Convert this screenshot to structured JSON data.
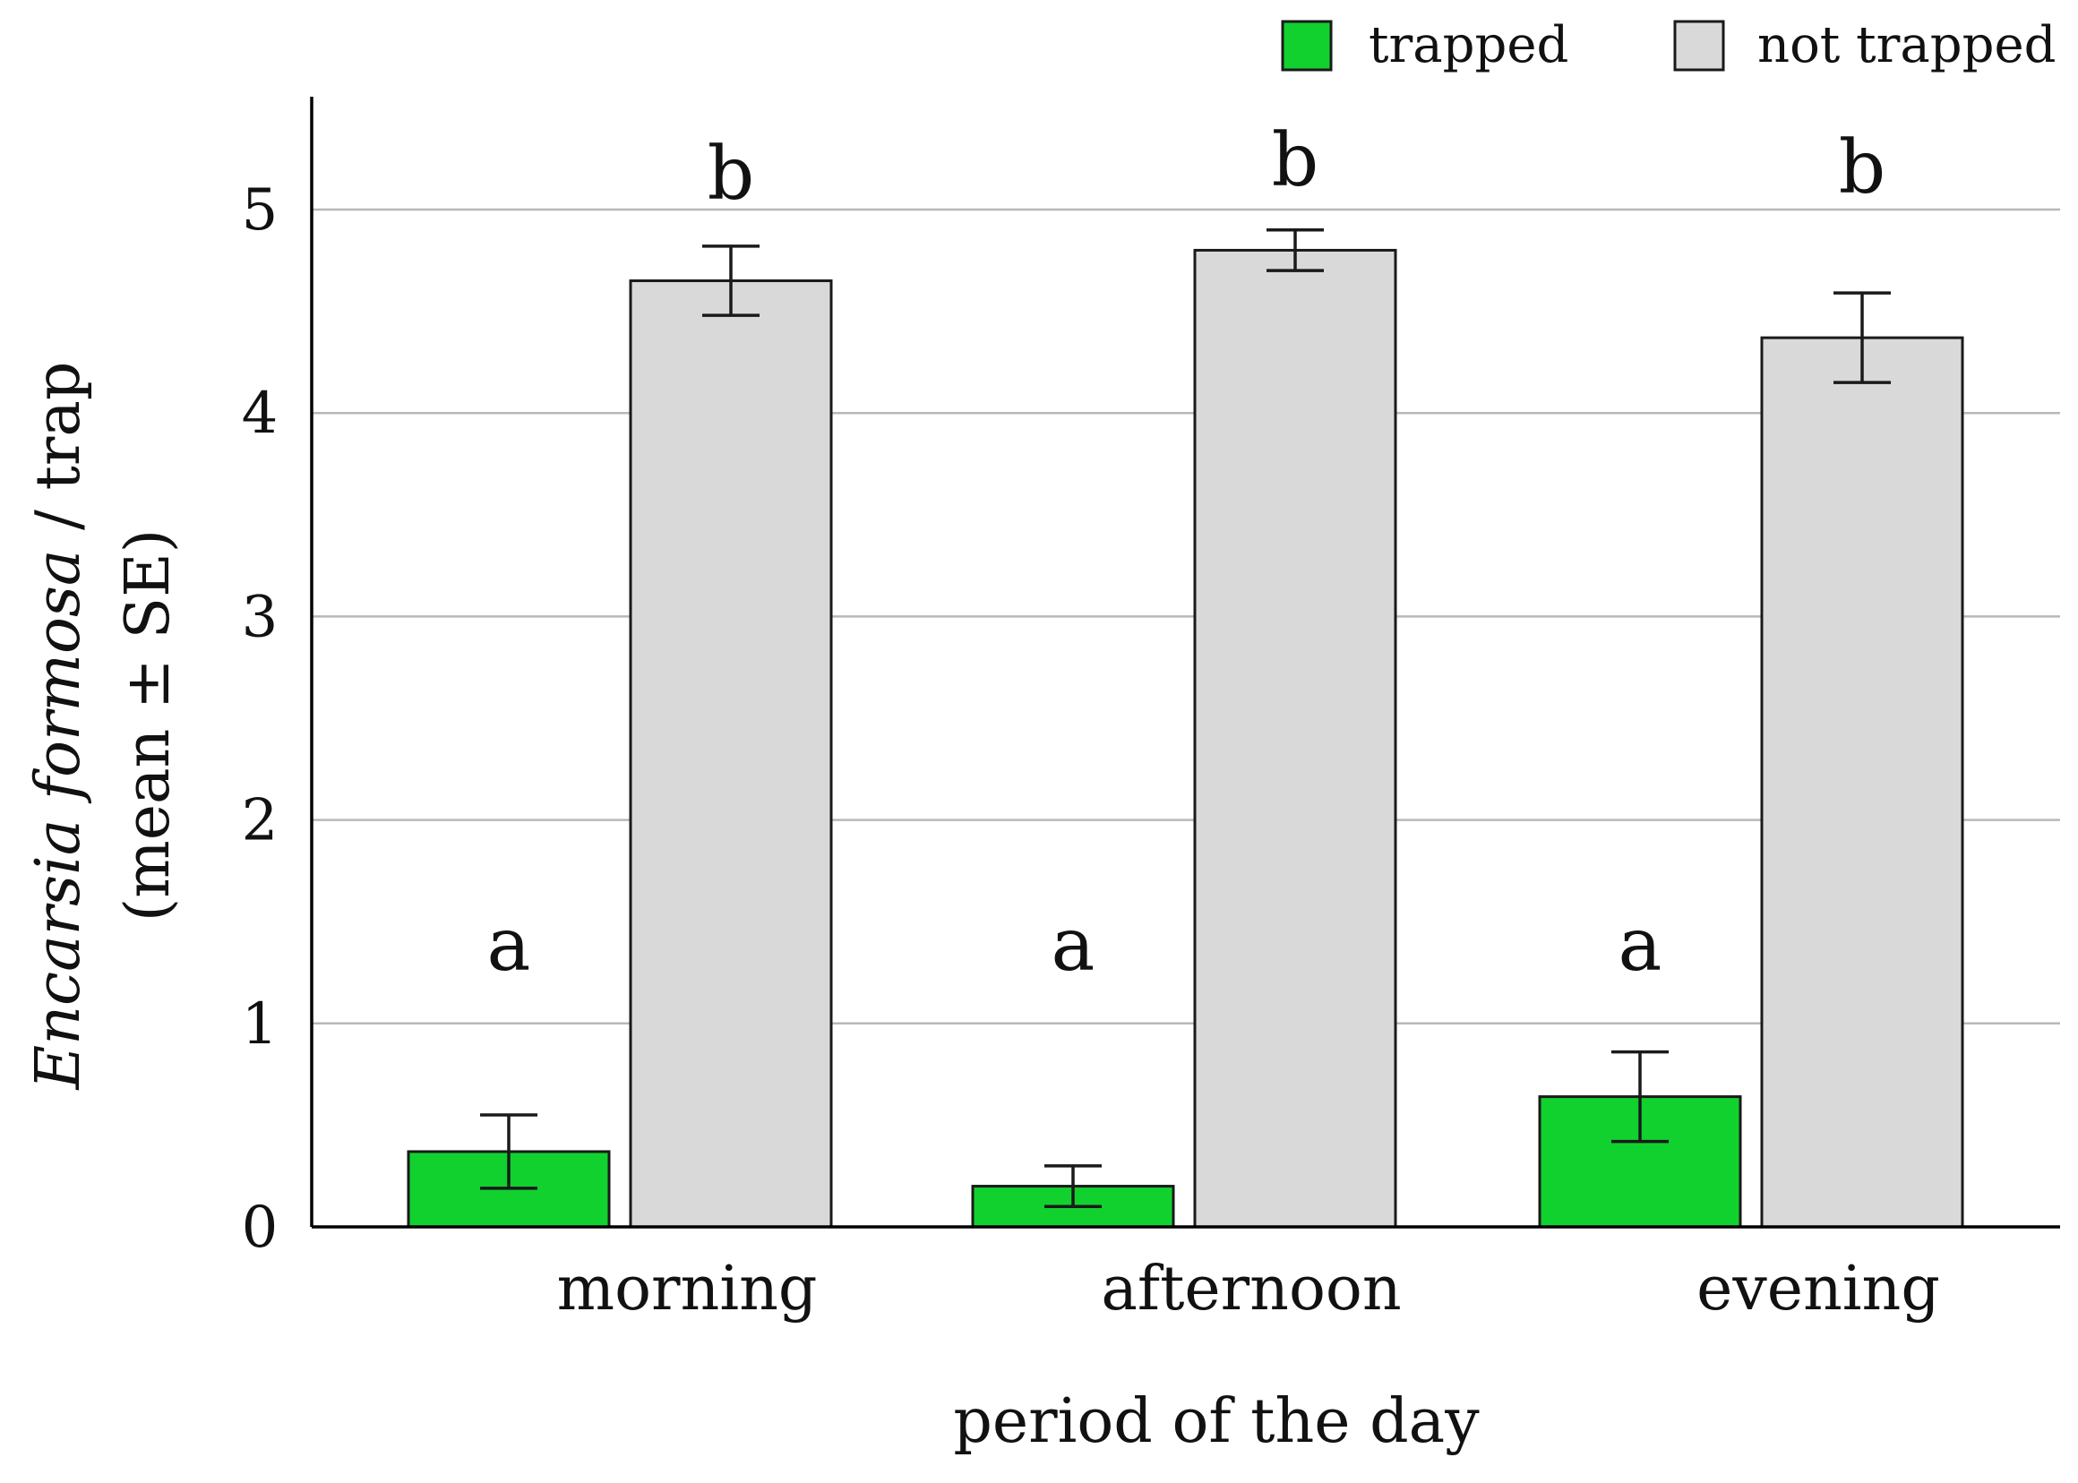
{
  "chart_data": {
    "type": "bar",
    "categories": [
      "morning",
      "afternoon",
      "evening"
    ],
    "series": [
      {
        "name": "trapped",
        "color": "#11d12f",
        "values": [
          0.37,
          0.2,
          0.64
        ],
        "se": [
          0.18,
          0.1,
          0.22
        ],
        "letters": [
          "a",
          "a",
          "a"
        ]
      },
      {
        "name": "not trapped",
        "color": "#d9d9d9",
        "values": [
          4.65,
          4.8,
          4.37
        ],
        "se": [
          0.17,
          0.1,
          0.22
        ],
        "letters": [
          "b",
          "b",
          "b"
        ]
      }
    ],
    "xlabel": "period of the day",
    "ylabel_italic": "Encarsia formosa",
    "ylabel_rest": " / trap",
    "ylabel_line2": "(mean ± SE)",
    "ylim": [
      0,
      5.5
    ],
    "yticks": [
      0,
      1,
      2,
      3,
      4,
      5
    ],
    "grid": true,
    "legend_position": "top-right"
  }
}
